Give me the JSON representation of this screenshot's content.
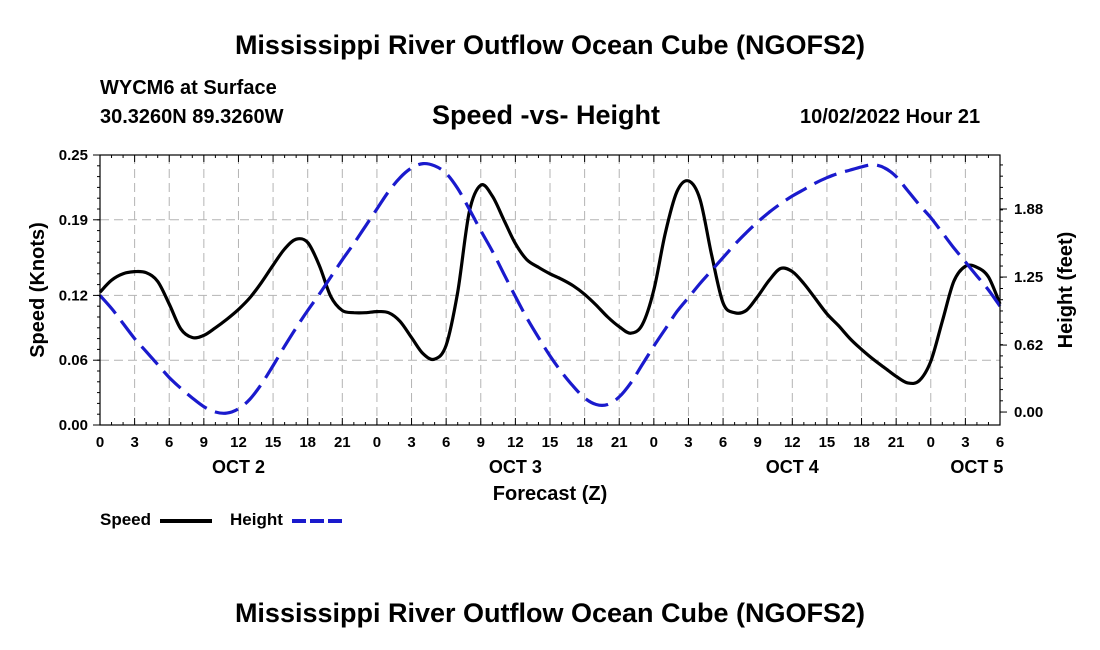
{
  "header": {
    "title": "Mississippi River Outflow Ocean Cube (NGOFS2)",
    "station": "WYCM6 at Surface",
    "coordinates": "30.3260N  89.3260W",
    "datetime": "10/02/2022 Hour 21"
  },
  "footer": {
    "title": "Mississippi River Outflow Ocean Cube (NGOFS2)"
  },
  "chart_data": {
    "type": "line",
    "title": "Speed -vs- Height",
    "xlabel": "Forecast (Z)",
    "ylabel": "Speed (Knots)",
    "y2label": "Height (feet)",
    "x_hours_range": [
      0,
      78
    ],
    "x_tick_labels": [
      "0",
      "3",
      "6",
      "9",
      "12",
      "15",
      "18",
      "21",
      "0",
      "3",
      "6",
      "9",
      "12",
      "15",
      "18",
      "21",
      "0",
      "3",
      "6",
      "9",
      "12",
      "15",
      "18",
      "21",
      "0",
      "3",
      "6"
    ],
    "day_labels": [
      {
        "label": "OCT 2",
        "hour": 12
      },
      {
        "label": "OCT 3",
        "hour": 36
      },
      {
        "label": "OCT 4",
        "hour": 60
      },
      {
        "label": "OCT 5",
        "hour": 76
      }
    ],
    "y_left": {
      "range": [
        0,
        0.25
      ],
      "ticks": [
        0.0,
        0.06,
        0.12,
        0.19,
        0.25
      ],
      "tick_labels": [
        "0.00",
        "0.06",
        "0.12",
        "0.19",
        "0.25"
      ]
    },
    "y_right": {
      "range": [
        -0.12,
        2.38
      ],
      "ticks": [
        0.0,
        0.62,
        1.25,
        1.88
      ],
      "tick_labels": [
        "0.00",
        "0.62",
        "1.25",
        "1.88"
      ]
    },
    "grid": true,
    "legend": {
      "position": "bottom-left",
      "entries": [
        "Speed",
        "Height"
      ]
    },
    "series": [
      {
        "name": "Speed",
        "axis": "left",
        "color": "#000000",
        "dash": "solid",
        "x": [
          0,
          1,
          2,
          3,
          4,
          5,
          6,
          7,
          8,
          9,
          10,
          11,
          12,
          13,
          14,
          15,
          16,
          17,
          18,
          19,
          20,
          21,
          22,
          23,
          24,
          25,
          26,
          27,
          28,
          29,
          30,
          31,
          32,
          33,
          34,
          35,
          36,
          37,
          38,
          39,
          40,
          41,
          42,
          43,
          44,
          45,
          46,
          47,
          48,
          49,
          50,
          51,
          52,
          53,
          54,
          55,
          56,
          57,
          58,
          59,
          60,
          61,
          62,
          63,
          64,
          65,
          66,
          67,
          68,
          69,
          70,
          71,
          72,
          73,
          74,
          75,
          76,
          77,
          78
        ],
        "values": [
          0.123,
          0.134,
          0.14,
          0.142,
          0.141,
          0.133,
          0.112,
          0.089,
          0.081,
          0.083,
          0.09,
          0.098,
          0.107,
          0.118,
          0.132,
          0.148,
          0.163,
          0.172,
          0.169,
          0.148,
          0.119,
          0.106,
          0.104,
          0.104,
          0.105,
          0.104,
          0.096,
          0.081,
          0.066,
          0.061,
          0.074,
          0.123,
          0.197,
          0.222,
          0.212,
          0.19,
          0.168,
          0.153,
          0.146,
          0.14,
          0.135,
          0.129,
          0.121,
          0.111,
          0.1,
          0.091,
          0.085,
          0.093,
          0.125,
          0.178,
          0.216,
          0.226,
          0.209,
          0.158,
          0.113,
          0.104,
          0.106,
          0.119,
          0.134,
          0.145,
          0.142,
          0.131,
          0.117,
          0.103,
          0.092,
          0.08,
          0.07,
          0.061,
          0.053,
          0.045,
          0.039,
          0.041,
          0.059,
          0.096,
          0.133,
          0.147,
          0.146,
          0.137,
          0.112
        ]
      },
      {
        "name": "Height",
        "axis": "right",
        "color": "#1a1acd",
        "dash": "long-dash",
        "x": [
          0,
          1,
          2,
          3,
          4,
          5,
          6,
          7,
          8,
          9,
          10,
          11,
          12,
          13,
          14,
          15,
          16,
          17,
          18,
          19,
          20,
          21,
          22,
          23,
          24,
          25,
          26,
          27,
          28,
          29,
          30,
          31,
          32,
          33,
          34,
          35,
          36,
          37,
          38,
          39,
          40,
          41,
          42,
          43,
          44,
          45,
          46,
          47,
          48,
          49,
          50,
          51,
          52,
          53,
          54,
          55,
          56,
          57,
          58,
          59,
          60,
          61,
          62,
          63,
          64,
          65,
          66,
          67,
          68,
          69,
          70,
          71,
          72,
          73,
          74,
          75,
          76,
          77,
          78
        ],
        "values": [
          1.08,
          0.96,
          0.82,
          0.68,
          0.56,
          0.44,
          0.32,
          0.22,
          0.13,
          0.05,
          0.0,
          -0.01,
          0.03,
          0.12,
          0.26,
          0.43,
          0.61,
          0.78,
          0.94,
          1.09,
          1.25,
          1.41,
          1.56,
          1.72,
          1.88,
          2.04,
          2.17,
          2.26,
          2.3,
          2.28,
          2.21,
          2.07,
          1.88,
          1.68,
          1.49,
          1.28,
          1.07,
          0.87,
          0.69,
          0.52,
          0.37,
          0.24,
          0.13,
          0.07,
          0.07,
          0.14,
          0.27,
          0.44,
          0.61,
          0.77,
          0.93,
          1.06,
          1.19,
          1.31,
          1.43,
          1.55,
          1.66,
          1.76,
          1.85,
          1.93,
          2.0,
          2.06,
          2.12,
          2.17,
          2.21,
          2.24,
          2.27,
          2.29,
          2.26,
          2.18,
          2.05,
          1.92,
          1.8,
          1.66,
          1.52,
          1.39,
          1.26,
          1.13,
          0.98
        ]
      }
    ]
  }
}
